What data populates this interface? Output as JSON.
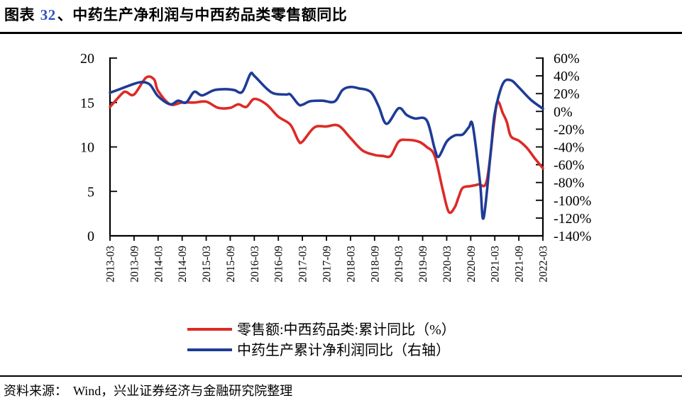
{
  "figure": {
    "title_prefix": "图表 ",
    "title_number": "32",
    "title_rest": "、中药生产净利润与中西药品类零售额同比"
  },
  "source": {
    "label": "资料来源：",
    "text": "Wind，兴业证券经济与金融研究院整理"
  },
  "chart_data": {
    "type": "line",
    "title": "中药生产净利润与中西药品类零售额同比",
    "grid": false,
    "legend_position": "bottom-center",
    "x_axis": {
      "unit": "months since 2013-03",
      "range_months": [
        0,
        108
      ],
      "tick_interval_months": 6,
      "tick_labels": [
        "2013-03",
        "2013-09",
        "2014-03",
        "2014-09",
        "2015-03",
        "2015-09",
        "2016-03",
        "2016-09",
        "2017-03",
        "2017-09",
        "2018-03",
        "2018-09",
        "2019-03",
        "2019-09",
        "2020-03",
        "2020-09",
        "2021-03",
        "2021-09",
        "2022-03"
      ]
    },
    "left_axis": {
      "min": 0,
      "max": 20,
      "ticks": [
        20,
        15,
        10,
        5,
        0
      ],
      "tick_labels": [
        "20",
        "15",
        "10",
        "5",
        "0"
      ]
    },
    "right_axis": {
      "min": -140,
      "max": 60,
      "step": 20,
      "tick_labels": [
        "60%",
        "40%",
        "20%",
        "0%",
        "-20%",
        "-40%",
        "-60%",
        "-80%",
        "-100%",
        "-120%",
        "-140%"
      ]
    },
    "series": [
      {
        "id": "retail-yoy",
        "name": "零售额:中西药品类:累计同比（%）",
        "axis": "left",
        "color": "#dd2a26",
        "points": [
          [
            0,
            14.5
          ],
          [
            3,
            16.0
          ],
          [
            4,
            16.2
          ],
          [
            6,
            15.9
          ],
          [
            9,
            17.8
          ],
          [
            11,
            17.6
          ],
          [
            12,
            16.3
          ],
          [
            15,
            14.8
          ],
          [
            18,
            15.0
          ],
          [
            21,
            15.0
          ],
          [
            24,
            15.1
          ],
          [
            27,
            14.4
          ],
          [
            30,
            14.4
          ],
          [
            32,
            14.8
          ],
          [
            34,
            14.5
          ],
          [
            36,
            15.4
          ],
          [
            39,
            14.8
          ],
          [
            42,
            13.4
          ],
          [
            45,
            12.5
          ],
          [
            47,
            10.7
          ],
          [
            48,
            10.6
          ],
          [
            51,
            12.2
          ],
          [
            54,
            12.3
          ],
          [
            57,
            12.4
          ],
          [
            60,
            11.0
          ],
          [
            63,
            9.6
          ],
          [
            66,
            9.1
          ],
          [
            68,
            9.0
          ],
          [
            70,
            9.0
          ],
          [
            72,
            10.6
          ],
          [
            74,
            10.8
          ],
          [
            77,
            10.6
          ],
          [
            79,
            10.0
          ],
          [
            81,
            9.0
          ],
          [
            83,
            5.2
          ],
          [
            84.5,
            2.7
          ],
          [
            86,
            3.2
          ],
          [
            87,
            4.4
          ],
          [
            88,
            5.4
          ],
          [
            90,
            5.6
          ],
          [
            92,
            5.8
          ],
          [
            94,
            6.2
          ],
          [
            95.8,
            12.7
          ],
          [
            96.7,
            15.1
          ],
          [
            98,
            13.8
          ],
          [
            99,
            12.8
          ],
          [
            100,
            11.2
          ],
          [
            102,
            10.7
          ],
          [
            104,
            9.9
          ],
          [
            106,
            8.7
          ],
          [
            108,
            7.6
          ]
        ]
      },
      {
        "id": "tcm-profit-yoy",
        "name": "中药生产累计净利润同比（右轴）",
        "axis": "right",
        "color": "#1e3c96",
        "points": [
          [
            0,
            21
          ],
          [
            3,
            26
          ],
          [
            6,
            31
          ],
          [
            8,
            33
          ],
          [
            10,
            30
          ],
          [
            12,
            17
          ],
          [
            15,
            8
          ],
          [
            17,
            12
          ],
          [
            19,
            10
          ],
          [
            21,
            22
          ],
          [
            23,
            18
          ],
          [
            26,
            24
          ],
          [
            29,
            25
          ],
          [
            31,
            24
          ],
          [
            33,
            22
          ],
          [
            35,
            42
          ],
          [
            36,
            40
          ],
          [
            39,
            26
          ],
          [
            41,
            20
          ],
          [
            44,
            19
          ],
          [
            45,
            19
          ],
          [
            47,
            8
          ],
          [
            48,
            7.5
          ],
          [
            50,
            11.5
          ],
          [
            53,
            12
          ],
          [
            56,
            11
          ],
          [
            58,
            24
          ],
          [
            60,
            27.5
          ],
          [
            62,
            26
          ],
          [
            65,
            22
          ],
          [
            67,
            6
          ],
          [
            69,
            -14
          ],
          [
            72,
            3.5
          ],
          [
            74,
            -4
          ],
          [
            76,
            -8
          ],
          [
            79,
            -10
          ],
          [
            81,
            -42
          ],
          [
            82,
            -51
          ],
          [
            84,
            -34
          ],
          [
            86,
            -27
          ],
          [
            88,
            -26
          ],
          [
            89.5,
            -18
          ],
          [
            90.5,
            -16
          ],
          [
            92.3,
            -79
          ],
          [
            93.2,
            -120
          ],
          [
            95,
            -45
          ],
          [
            96,
            -2
          ],
          [
            98,
            31
          ],
          [
            100,
            35
          ],
          [
            102,
            27
          ],
          [
            105,
            13
          ],
          [
            108,
            3
          ]
        ]
      }
    ]
  }
}
